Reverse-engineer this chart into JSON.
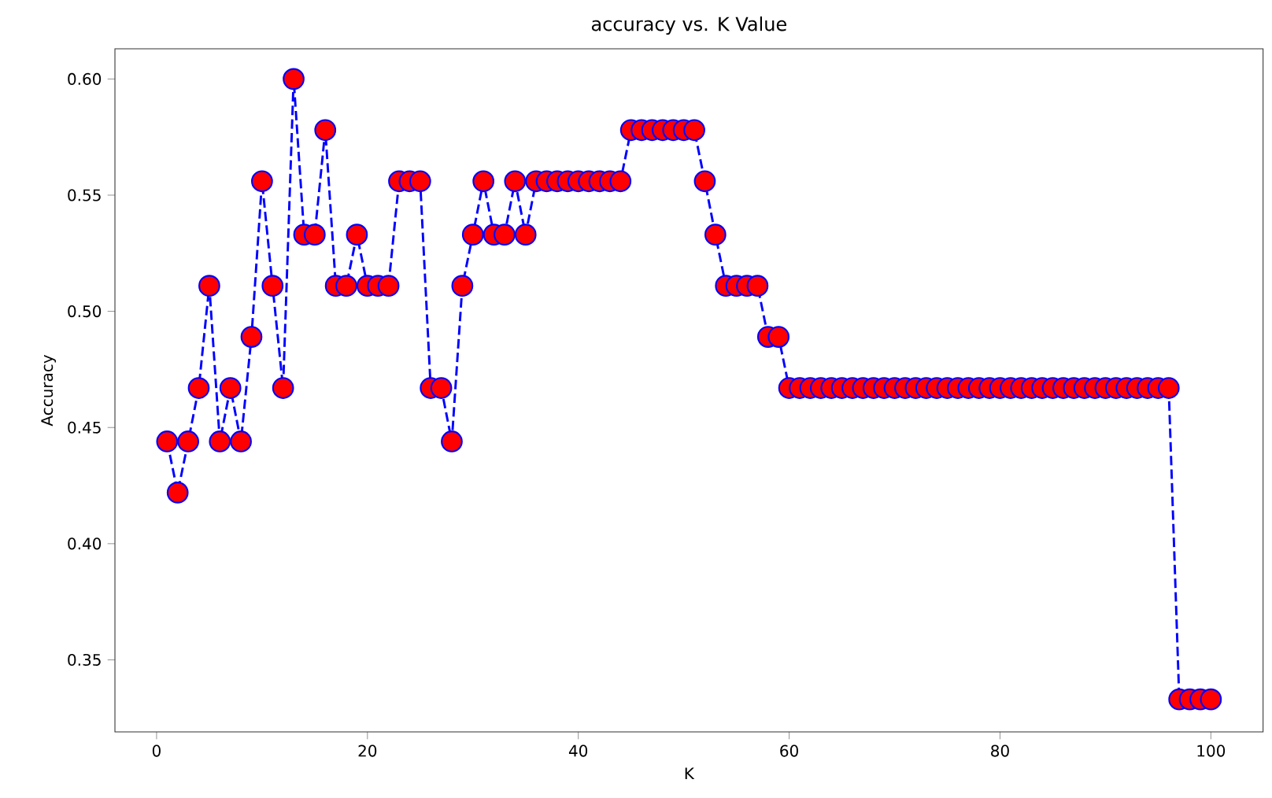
{
  "chart_data": {
    "type": "line",
    "title": "accuracy vs. K Value",
    "xlabel": "K",
    "ylabel": "Accuracy",
    "x": [
      1,
      2,
      3,
      4,
      5,
      6,
      7,
      8,
      9,
      10,
      11,
      12,
      13,
      14,
      15,
      16,
      17,
      18,
      19,
      20,
      21,
      22,
      23,
      24,
      25,
      26,
      27,
      28,
      29,
      30,
      31,
      32,
      33,
      34,
      35,
      36,
      37,
      38,
      39,
      40,
      41,
      42,
      43,
      44,
      45,
      46,
      47,
      48,
      49,
      50,
      51,
      52,
      53,
      54,
      55,
      56,
      57,
      58,
      59,
      60,
      61,
      62,
      63,
      64,
      65,
      66,
      67,
      68,
      69,
      70,
      71,
      72,
      73,
      74,
      75,
      76,
      77,
      78,
      79,
      80,
      81,
      82,
      83,
      84,
      85,
      86,
      87,
      88,
      89,
      90,
      91,
      92,
      93,
      94,
      95,
      96,
      97,
      98,
      99,
      100
    ],
    "series": [
      {
        "color": "#0000ff",
        "colors": [
          "#ff0000",
          "#ff0000",
          "#ff0000",
          "#ff0000",
          "#ff0000",
          "#ff0000",
          "#ff0000",
          "#ff0000",
          "#ff0000",
          "#ff0000",
          "#ff0000",
          "#ff0000",
          "#ff0000",
          "#ff0000",
          "#ff0000",
          "#ff0000",
          "#ff0000",
          "#ff0000",
          "#ff0000",
          "#ff0000",
          "#ff0000",
          "#ff0000",
          "#ff0000",
          "#ff0000",
          "#ff0000",
          "#ff0000",
          "#ff0000",
          "#ff0000",
          "#ff0000",
          "#ff0000",
          "#ff0000",
          "#ff0000",
          "#ff0000",
          "#ff0000",
          "#ff0000",
          "#ff0000",
          "#ff0000",
          "#ff0000",
          "#ff0000",
          "#ff0000",
          "#ff0000",
          "#ff0000",
          "#ff0000",
          "#ff0000",
          "#ff0000",
          "#ff0000",
          "#ff0000",
          "#ff0000",
          "#ff0000",
          "#ff0000",
          "#ff0000",
          "#ff0000",
          "#ff0000",
          "#ff0000",
          "#ff0000",
          "#ff0000",
          "#ff0000",
          "#ff0000",
          "#ff0000",
          "#ff0000",
          "#ff0000",
          "#ff0000",
          "#ff0000",
          "#ff0000",
          "#ff0000",
          "#ff0000",
          "#ff0000",
          "#ff0000",
          "#ff0000",
          "#ff0000",
          "#ff0000",
          "#ff0000",
          "#ff0000",
          "#ff0000",
          "#ff0000",
          "#ff0000",
          "#ff0000",
          "#ff0000",
          "#ff0000",
          "#ff0000",
          "#ff0000",
          "#ff0000",
          "#ff0000",
          "#ff0000",
          "#ff0000",
          "#ff0000",
          "#ff0000",
          "#ff0000",
          "#ff0000",
          "#ff0000",
          "#ff0000",
          "#ff0000",
          "#ff0000",
          "#ff0000",
          "#ff0000",
          "#ff0000",
          "#ff0000",
          "#ff0000",
          "#ff0000",
          "#ff0000"
        ],
        "values": [
          0.444,
          0.422,
          0.444,
          0.467,
          0.511,
          0.444,
          0.467,
          0.444,
          0.489,
          0.556,
          0.511,
          0.467,
          0.6,
          0.533,
          0.533,
          0.578,
          0.511,
          0.511,
          0.533,
          0.511,
          0.511,
          0.511,
          0.556,
          0.556,
          0.556,
          0.467,
          0.467,
          0.444,
          0.511,
          0.533,
          0.556,
          0.533,
          0.533,
          0.556,
          0.533,
          0.556,
          0.556,
          0.556,
          0.556,
          0.556,
          0.556,
          0.556,
          0.556,
          0.556,
          0.578,
          0.578,
          0.578,
          0.578,
          0.578,
          0.578,
          0.578,
          0.556,
          0.533,
          0.511,
          0.511,
          0.511,
          0.511,
          0.489,
          0.489,
          0.467,
          0.467,
          0.467,
          0.467,
          0.467,
          0.467,
          0.467,
          0.467,
          0.467,
          0.467,
          0.467,
          0.467,
          0.467,
          0.467,
          0.467,
          0.467,
          0.467,
          0.467,
          0.467,
          0.467,
          0.467,
          0.467,
          0.467,
          0.467,
          0.467,
          0.467,
          0.467,
          0.467,
          0.467,
          0.467,
          0.467,
          0.467,
          0.467,
          0.467,
          0.467,
          0.467,
          0.467,
          0.333,
          0.333,
          0.333,
          0.333
        ]
      }
    ],
    "xlim": [
      -3.95,
      104.95
    ],
    "ylim": [
      0.319,
      0.613
    ],
    "xticks": [
      0,
      20,
      40,
      60,
      80,
      100
    ],
    "yticks": [
      {
        "value": 0.35,
        "label": "0.35"
      },
      {
        "value": 0.4,
        "label": "0.40"
      },
      {
        "value": 0.45,
        "label": "0.45"
      },
      {
        "value": 0.5,
        "label": "0.50"
      },
      {
        "value": 0.55,
        "label": "0.55"
      },
      {
        "value": 0.6,
        "label": "0.60"
      }
    ],
    "marker": "circle",
    "line_style": "dashed"
  }
}
